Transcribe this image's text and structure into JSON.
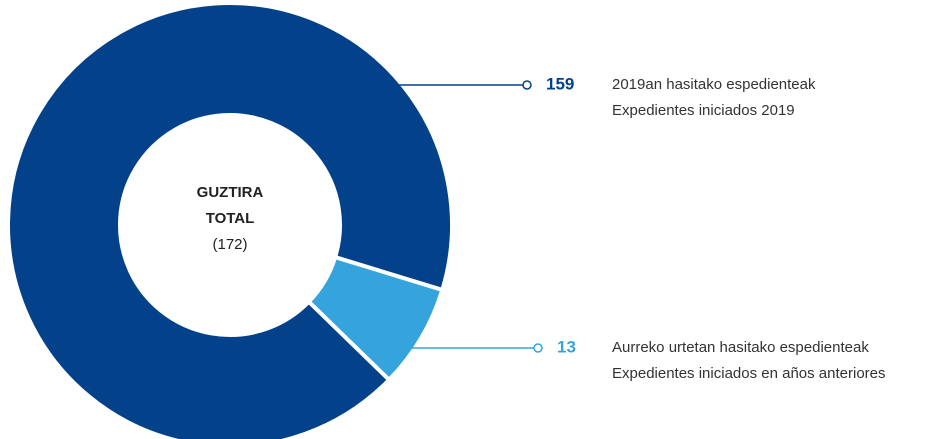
{
  "chart_data": {
    "type": "donut",
    "center_label": [
      "GUZTIRA",
      "TOTAL",
      "(172)"
    ],
    "categories": [
      [
        "2019an hasitako espedienteak",
        "Expedientes iniciados 2019"
      ],
      [
        "Aurreko urtetan  hasitako espedienteak",
        "Expedientes iniciados en años anteriores"
      ]
    ],
    "values": [
      159,
      13
    ],
    "colors": [
      "#03428a",
      "#35a4dc"
    ]
  }
}
